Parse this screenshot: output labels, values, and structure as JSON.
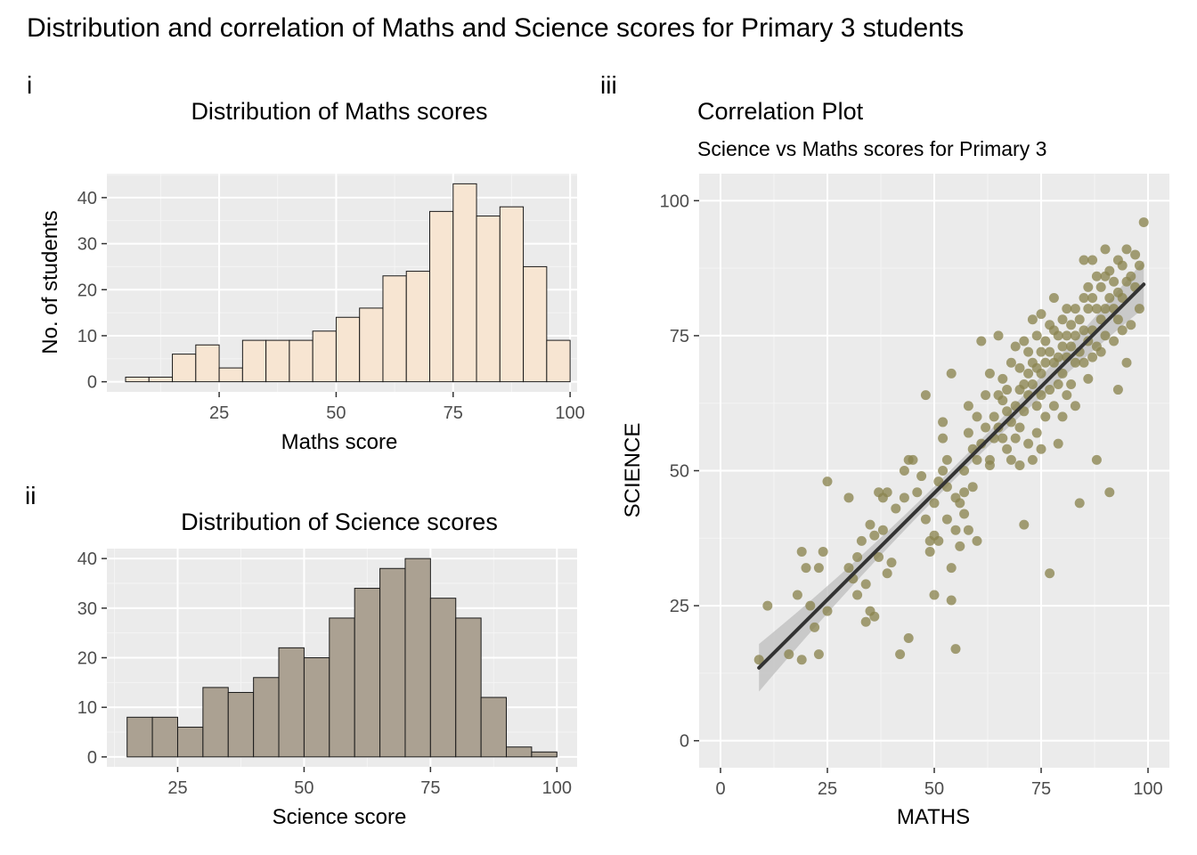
{
  "title": "Distribution and correlation of Maths and Science scores for Primary 3 students",
  "chart_data": [
    {
      "panel_tag": "i",
      "type": "bar",
      "title": "Distribution of Maths scores",
      "xlabel": "Maths score",
      "ylabel": "No. of students",
      "xlim": [
        1,
        101.5
      ],
      "ylim": [
        -2.2,
        45.2
      ],
      "xticks": [
        25,
        50,
        75,
        100
      ],
      "yticks": [
        0,
        10,
        20,
        30,
        40
      ],
      "bin_start": 5,
      "bin_width": 5,
      "values": [
        1,
        1,
        6,
        8,
        3,
        9,
        9,
        9,
        11,
        14,
        16,
        23,
        24,
        37,
        43,
        36,
        38,
        25,
        9
      ],
      "fill": "#f7e5d2",
      "border": "#1a1a1a",
      "grid": true
    },
    {
      "panel_tag": "ii",
      "type": "bar",
      "title": "Distribution of Science scores",
      "xlabel": "Science score",
      "ylabel": "",
      "xlim": [
        11,
        104
      ],
      "ylim": [
        -2,
        42
      ],
      "xticks": [
        25,
        50,
        75,
        100
      ],
      "yticks": [
        0,
        10,
        20,
        30,
        40
      ],
      "bin_start": 15,
      "bin_width": 5,
      "values": [
        8,
        8,
        6,
        14,
        13,
        16,
        22,
        20,
        28,
        34,
        38,
        40,
        32,
        28,
        12,
        2,
        1
      ],
      "fill": "#aba192",
      "border": "#1a1a1a",
      "grid": true
    },
    {
      "panel_tag": "iii",
      "type": "scatter",
      "title": "Correlation Plot",
      "subtitle": "Science vs Maths scores for Primary 3",
      "xlabel": "MATHS",
      "ylabel": "SCIENCE",
      "xlim": [
        -5,
        105
      ],
      "ylim": [
        -5,
        105
      ],
      "xticks": [
        0,
        25,
        50,
        75,
        100
      ],
      "yticks": [
        0,
        25,
        50,
        75,
        100
      ],
      "point_color": "#8a8450",
      "trend": {
        "x": [
          9,
          99
        ],
        "y": [
          13.5,
          84.5
        ],
        "color": "#333333",
        "band_color": "#bdbdbd"
      },
      "grid": true,
      "points": [
        [
          9,
          15
        ],
        [
          11,
          25
        ],
        [
          16,
          16
        ],
        [
          18,
          27
        ],
        [
          19,
          15
        ],
        [
          19,
          35
        ],
        [
          20,
          32
        ],
        [
          21,
          25
        ],
        [
          22,
          21
        ],
        [
          23,
          16
        ],
        [
          23,
          32
        ],
        [
          24,
          35
        ],
        [
          25,
          24
        ],
        [
          25,
          48
        ],
        [
          30,
          45
        ],
        [
          30,
          32
        ],
        [
          31,
          30
        ],
        [
          32,
          27
        ],
        [
          32,
          34
        ],
        [
          33,
          37
        ],
        [
          34,
          29
        ],
        [
          34,
          22
        ],
        [
          35,
          40
        ],
        [
          35,
          24
        ],
        [
          36,
          38
        ],
        [
          36,
          23
        ],
        [
          37,
          34
        ],
        [
          37,
          46
        ],
        [
          38,
          45
        ],
        [
          38,
          39
        ],
        [
          39,
          31
        ],
        [
          39,
          46
        ],
        [
          40,
          33
        ],
        [
          41,
          43
        ],
        [
          42,
          16
        ],
        [
          43,
          45
        ],
        [
          43,
          50
        ],
        [
          44,
          19
        ],
        [
          44,
          52
        ],
        [
          45,
          52
        ],
        [
          46,
          46
        ],
        [
          47,
          49
        ],
        [
          48,
          64
        ],
        [
          48,
          41
        ],
        [
          49,
          35
        ],
        [
          49,
          37
        ],
        [
          50,
          44
        ],
        [
          50,
          27
        ],
        [
          50,
          38
        ],
        [
          51,
          37
        ],
        [
          51,
          48
        ],
        [
          52,
          50
        ],
        [
          52,
          56
        ],
        [
          52,
          59
        ],
        [
          53,
          47
        ],
        [
          53,
          41
        ],
        [
          53,
          52
        ],
        [
          54,
          68
        ],
        [
          54,
          32
        ],
        [
          54,
          26
        ],
        [
          55,
          45
        ],
        [
          55,
          39
        ],
        [
          55,
          17
        ],
        [
          56,
          36
        ],
        [
          56,
          44
        ],
        [
          57,
          50
        ],
        [
          57,
          46
        ],
        [
          57,
          42
        ],
        [
          58,
          39
        ],
        [
          58,
          57
        ],
        [
          58,
          62
        ],
        [
          59,
          54
        ],
        [
          59,
          47
        ],
        [
          60,
          52
        ],
        [
          60,
          60
        ],
        [
          60,
          37
        ],
        [
          61,
          74
        ],
        [
          61,
          55
        ],
        [
          62,
          64
        ],
        [
          62,
          58
        ],
        [
          63,
          52
        ],
        [
          63,
          68
        ],
        [
          63,
          51
        ],
        [
          64,
          60
        ],
        [
          64,
          56
        ],
        [
          65,
          75
        ],
        [
          65,
          64
        ],
        [
          65,
          58
        ],
        [
          66,
          67
        ],
        [
          66,
          63
        ],
        [
          66,
          56
        ],
        [
          67,
          61
        ],
        [
          67,
          65
        ],
        [
          67,
          54
        ],
        [
          68,
          70
        ],
        [
          68,
          52
        ],
        [
          68,
          59
        ],
        [
          69,
          73
        ],
        [
          69,
          62
        ],
        [
          69,
          56
        ],
        [
          70,
          69
        ],
        [
          70,
          65
        ],
        [
          70,
          58
        ],
        [
          70,
          51
        ],
        [
          71,
          74
        ],
        [
          71,
          66
        ],
        [
          71,
          61
        ],
        [
          71,
          40
        ],
        [
          72,
          72
        ],
        [
          72,
          68
        ],
        [
          72,
          64
        ],
        [
          72,
          55
        ],
        [
          73,
          78
        ],
        [
          73,
          70
        ],
        [
          73,
          66
        ],
        [
          73,
          52
        ],
        [
          74,
          75
        ],
        [
          74,
          69
        ],
        [
          74,
          62
        ],
        [
          74,
          57
        ],
        [
          75,
          72
        ],
        [
          75,
          68
        ],
        [
          75,
          64
        ],
        [
          75,
          54
        ],
        [
          75,
          79
        ],
        [
          76,
          74
        ],
        [
          76,
          70
        ],
        [
          76,
          60
        ],
        [
          77,
          77
        ],
        [
          77,
          72
        ],
        [
          77,
          65
        ],
        [
          77,
          31
        ],
        [
          78,
          82
        ],
        [
          78,
          76
        ],
        [
          78,
          70
        ],
        [
          78,
          62
        ],
        [
          79,
          75
        ],
        [
          79,
          71
        ],
        [
          79,
          66
        ],
        [
          79,
          55
        ],
        [
          80,
          78
        ],
        [
          80,
          73
        ],
        [
          80,
          68
        ],
        [
          80,
          60
        ],
        [
          81,
          80
        ],
        [
          81,
          75
        ],
        [
          81,
          71
        ],
        [
          81,
          64
        ],
        [
          82,
          77
        ],
        [
          82,
          73
        ],
        [
          82,
          66
        ],
        [
          83,
          80
        ],
        [
          83,
          75
        ],
        [
          83,
          70
        ],
        [
          83,
          62
        ],
        [
          84,
          78
        ],
        [
          84,
          72
        ],
        [
          84,
          44
        ],
        [
          85,
          89
        ],
        [
          85,
          82
        ],
        [
          85,
          76
        ],
        [
          85,
          70
        ],
        [
          86,
          84
        ],
        [
          86,
          80
        ],
        [
          86,
          74
        ],
        [
          86,
          67
        ],
        [
          87,
          89
        ],
        [
          87,
          82
        ],
        [
          87,
          76
        ],
        [
          87,
          71
        ],
        [
          88,
          86
        ],
        [
          88,
          80
        ],
        [
          88,
          73
        ],
        [
          88,
          52
        ],
        [
          89,
          84
        ],
        [
          89,
          78
        ],
        [
          89,
          72
        ],
        [
          90,
          91
        ],
        [
          90,
          86
        ],
        [
          90,
          80
        ],
        [
          90,
          75
        ],
        [
          91,
          87
        ],
        [
          91,
          82
        ],
        [
          91,
          46
        ],
        [
          92,
          85
        ],
        [
          92,
          80
        ],
        [
          92,
          74
        ],
        [
          93,
          89
        ],
        [
          93,
          83
        ],
        [
          93,
          78
        ],
        [
          93,
          65
        ],
        [
          94,
          88
        ],
        [
          94,
          82
        ],
        [
          94,
          76
        ],
        [
          95,
          91
        ],
        [
          95,
          85
        ],
        [
          95,
          70
        ],
        [
          96,
          86
        ],
        [
          96,
          77
        ],
        [
          97,
          90
        ],
        [
          97,
          84
        ],
        [
          98,
          88
        ],
        [
          98,
          80
        ],
        [
          99,
          96
        ]
      ]
    }
  ]
}
